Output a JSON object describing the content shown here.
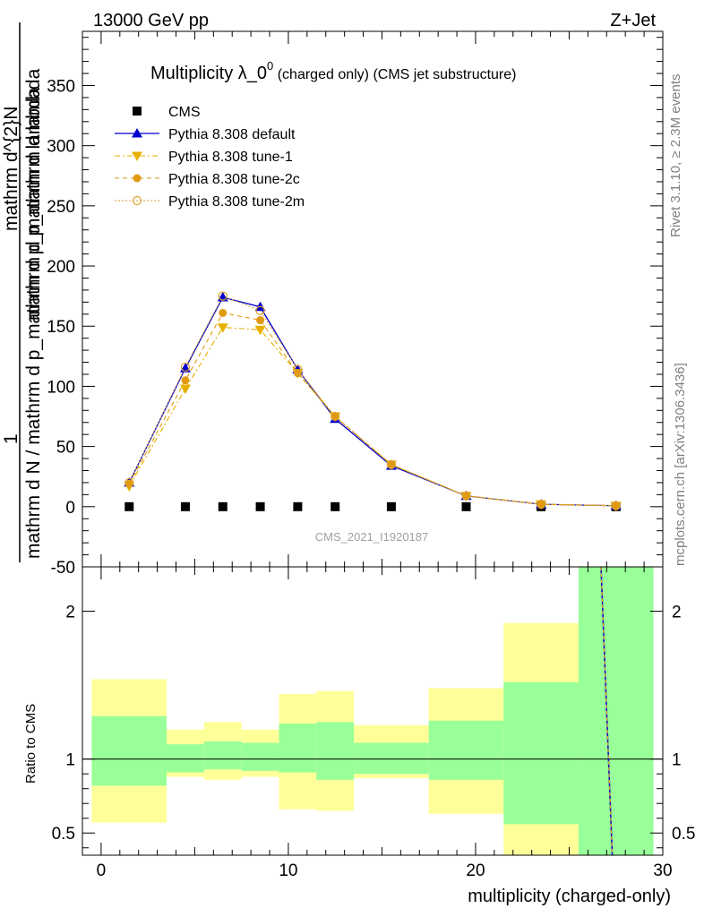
{
  "header": {
    "left": "13000 GeV pp",
    "right": "Z+Jet"
  },
  "side_labels": {
    "rivet": "Rivet 3.1.10, ≥ 2.3M events",
    "mcplots": "mcplots.cern.ch [arXiv:1306.3436]"
  },
  "main_title": {
    "prefix": "Multiplicity λ_0",
    "superscript": "0",
    "suffix": " (charged only) (CMS jet substructure)"
  },
  "y_axis_label": {
    "numerator": "1",
    "denominator": "mathrm d N / mathrm d p_mathrm d p_mathrm d lambda",
    "overlay1": "mathrm d^{2}N",
    "overlay2": "mathrm d p_mathrm d lambda"
  },
  "ratio_ylabel": "Ratio to CMS",
  "xlabel": "multiplicity (charged-only)",
  "watermark": "CMS_2021_I1920187",
  "legend": [
    {
      "label": "CMS",
      "color": "#000000"
    },
    {
      "label": "Pythia 8.308 default",
      "color": "#0000cc"
    },
    {
      "label": "Pythia 8.308 tune-1",
      "color": "#e6b000"
    },
    {
      "label": "Pythia 8.308 tune-2c",
      "color": "#e09a10"
    },
    {
      "label": "Pythia 8.308 tune-2m",
      "color": "#e0a030"
    }
  ],
  "chart_data": {
    "type": "line",
    "x": [
      1.5,
      4.5,
      6.5,
      8.5,
      10.5,
      12.5,
      15.5,
      19.5,
      23.5,
      27.5
    ],
    "xlim": [
      -1,
      30
    ],
    "xticks": [
      0,
      10,
      20,
      30
    ],
    "ylim": [
      -50,
      395
    ],
    "yticks": [
      -50,
      0,
      50,
      100,
      150,
      200,
      250,
      300,
      350
    ],
    "series": [
      {
        "name": "CMS",
        "values": [
          0,
          0,
          0,
          0,
          0,
          0,
          0,
          0,
          0,
          0
        ]
      },
      {
        "name": "Pythia 8.308 default",
        "values": [
          20,
          115,
          174,
          166,
          114,
          73,
          34,
          9,
          2,
          0.8
        ]
      },
      {
        "name": "Pythia 8.308 tune-1",
        "values": [
          17,
          98,
          149,
          147,
          111,
          75,
          35,
          9,
          2,
          0.8
        ]
      },
      {
        "name": "Pythia 8.308 tune-2c",
        "values": [
          19,
          105,
          161,
          155,
          111,
          75,
          35,
          9,
          2,
          0.8
        ]
      },
      {
        "name": "Pythia 8.308 tune-2m",
        "values": [
          20,
          116,
          175,
          163,
          114,
          75,
          35,
          9,
          2,
          0.8
        ]
      }
    ],
    "ratio": {
      "ylim": [
        0.35,
        2.3
      ],
      "yticks": [
        0.5,
        1,
        2
      ],
      "bins": [
        {
          "x0": -0.5,
          "x1": 3.5,
          "green": [
            0.82,
            1.29
          ],
          "yellow": [
            0.57,
            1.54
          ]
        },
        {
          "x0": 3.5,
          "x1": 5.5,
          "green": [
            0.91,
            1.1
          ],
          "yellow": [
            0.88,
            1.2
          ]
        },
        {
          "x0": 5.5,
          "x1": 7.5,
          "green": [
            0.93,
            1.12
          ],
          "yellow": [
            0.86,
            1.25
          ]
        },
        {
          "x0": 7.5,
          "x1": 9.5,
          "green": [
            0.92,
            1.11
          ],
          "yellow": [
            0.88,
            1.2
          ]
        },
        {
          "x0": 9.5,
          "x1": 11.5,
          "green": [
            0.91,
            1.24
          ],
          "yellow": [
            0.66,
            1.44
          ]
        },
        {
          "x0": 11.5,
          "x1": 13.5,
          "green": [
            0.86,
            1.25
          ],
          "yellow": [
            0.65,
            1.46
          ]
        },
        {
          "x0": 13.5,
          "x1": 17.5,
          "green": [
            0.9,
            1.11
          ],
          "yellow": [
            0.87,
            1.23
          ]
        },
        {
          "x0": 17.5,
          "x1": 21.5,
          "green": [
            0.86,
            1.26
          ],
          "yellow": [
            0.63,
            1.48
          ]
        },
        {
          "x0": 21.5,
          "x1": 25.5,
          "green": [
            0.56,
            1.52
          ],
          "yellow": [
            0.35,
            1.92
          ]
        },
        {
          "x0": 25.5,
          "x1": 29.5,
          "green": [
            0.35,
            2.3
          ],
          "yellow": [
            0.35,
            2.3
          ]
        }
      ],
      "line": {
        "x0": 26.7,
        "y0": 2.3,
        "x1": 27.3,
        "y1": 0.35
      }
    }
  }
}
